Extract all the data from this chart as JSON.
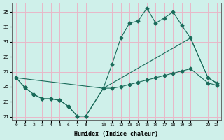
{
  "xlabel": "Humidex (Indice chaleur)",
  "bg_color": "#cff0ea",
  "grid_color": "#e8b8c8",
  "line_color": "#1a6b5a",
  "xlim": [
    -0.5,
    23.5
  ],
  "ylim": [
    20.5,
    36.2
  ],
  "yticks": [
    21,
    23,
    25,
    27,
    29,
    31,
    33,
    35
  ],
  "xticks": [
    0,
    1,
    2,
    3,
    4,
    5,
    6,
    7,
    8,
    10,
    11,
    12,
    13,
    14,
    15,
    16,
    17,
    18,
    19,
    20,
    22,
    23
  ],
  "line1_x": [
    0,
    1,
    2,
    3,
    4,
    5,
    6,
    7,
    8,
    10,
    11,
    12,
    13,
    14,
    15,
    16,
    17,
    18,
    19,
    20,
    22,
    23
  ],
  "line1_y": [
    26.2,
    24.9,
    24.0,
    23.4,
    23.4,
    23.2,
    22.4,
    21.1,
    21.1,
    24.8,
    28.0,
    31.5,
    33.5,
    33.8,
    35.5,
    33.5,
    34.2,
    35.0,
    33.2,
    31.5,
    26.2,
    25.5
  ],
  "line2_x": [
    0,
    10,
    20,
    22,
    23
  ],
  "line2_y": [
    26.2,
    24.8,
    31.5,
    26.2,
    25.5
  ],
  "line3_x": [
    0,
    1,
    2,
    3,
    4,
    5,
    6,
    7,
    8,
    10,
    11,
    12,
    13,
    14,
    15,
    16,
    17,
    18,
    19,
    20,
    22,
    23
  ],
  "line3_y": [
    26.2,
    24.9,
    24.0,
    23.4,
    23.4,
    23.2,
    22.4,
    21.1,
    21.1,
    24.8,
    24.8,
    25.0,
    25.3,
    25.6,
    25.9,
    26.2,
    26.5,
    26.8,
    27.1,
    27.4,
    25.5,
    25.2
  ]
}
